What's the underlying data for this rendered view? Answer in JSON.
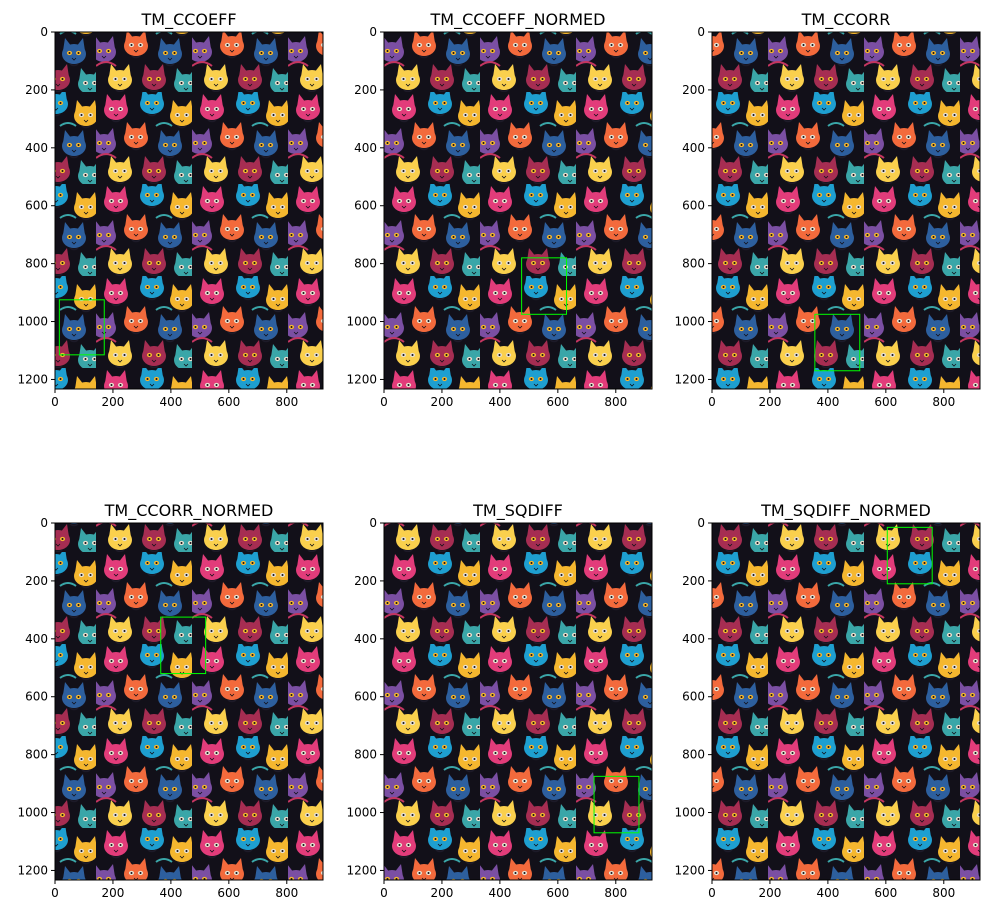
{
  "figure": {
    "background": "#ffffff",
    "box_color": "#00ff00",
    "image_content": "dense pattern of colorful cartoon cat faces on a dark background",
    "palette": [
      "#121019",
      "#1d1a28",
      "#e23c7a",
      "#f36a3c",
      "#f5b72f",
      "#1e9fd0",
      "#7b4fa3",
      "#c43560",
      "#2d5f9e",
      "#e8e0cf",
      "#fad04d",
      "#a62d52",
      "#3aa6a8"
    ]
  },
  "chart_data": [
    {
      "type": "image",
      "title": "TM_CCOEFF",
      "xlim": [
        0,
        925
      ],
      "ylim": [
        1233,
        0
      ],
      "xticks": [
        0,
        200,
        400,
        600,
        800
      ],
      "yticks": [
        0,
        200,
        400,
        600,
        800,
        1000,
        1200
      ],
      "match_box": {
        "x0": 15,
        "y0": 925,
        "x1": 170,
        "y1": 1115
      }
    },
    {
      "type": "image",
      "title": "TM_CCOEFF_NORMED",
      "xlim": [
        0,
        925
      ],
      "ylim": [
        1233,
        0
      ],
      "xticks": [
        0,
        200,
        400,
        600,
        800
      ],
      "yticks": [
        0,
        200,
        400,
        600,
        800,
        1000,
        1200
      ],
      "match_box": {
        "x0": 475,
        "y0": 780,
        "x1": 630,
        "y1": 975
      }
    },
    {
      "type": "image",
      "title": "TM_CCORR",
      "xlim": [
        0,
        925
      ],
      "ylim": [
        1233,
        0
      ],
      "xticks": [
        0,
        200,
        400,
        600,
        800
      ],
      "yticks": [
        0,
        200,
        400,
        600,
        800,
        1000,
        1200
      ],
      "match_box": {
        "x0": 355,
        "y0": 975,
        "x1": 510,
        "y1": 1170
      }
    },
    {
      "type": "image",
      "title": "TM_CCORR_NORMED",
      "xlim": [
        0,
        925
      ],
      "ylim": [
        1233,
        0
      ],
      "xticks": [
        0,
        200,
        400,
        600,
        800
      ],
      "yticks": [
        0,
        200,
        400,
        600,
        800,
        1000,
        1200
      ],
      "match_box": {
        "x0": 365,
        "y0": 325,
        "x1": 520,
        "y1": 520
      }
    },
    {
      "type": "image",
      "title": "TM_SQDIFF",
      "xlim": [
        0,
        925
      ],
      "ylim": [
        1233,
        0
      ],
      "xticks": [
        0,
        200,
        400,
        600,
        800
      ],
      "yticks": [
        0,
        200,
        400,
        600,
        800,
        1000,
        1200
      ],
      "match_box": {
        "x0": 725,
        "y0": 875,
        "x1": 880,
        "y1": 1070
      }
    },
    {
      "type": "image",
      "title": "TM_SQDIFF_NORMED",
      "xlim": [
        0,
        925
      ],
      "ylim": [
        1233,
        0
      ],
      "xticks": [
        0,
        200,
        400,
        600,
        800
      ],
      "yticks": [
        0,
        200,
        400,
        600,
        800,
        1000,
        1200
      ],
      "match_box": {
        "x0": 605,
        "y0": 15,
        "x1": 760,
        "y1": 210
      }
    }
  ]
}
